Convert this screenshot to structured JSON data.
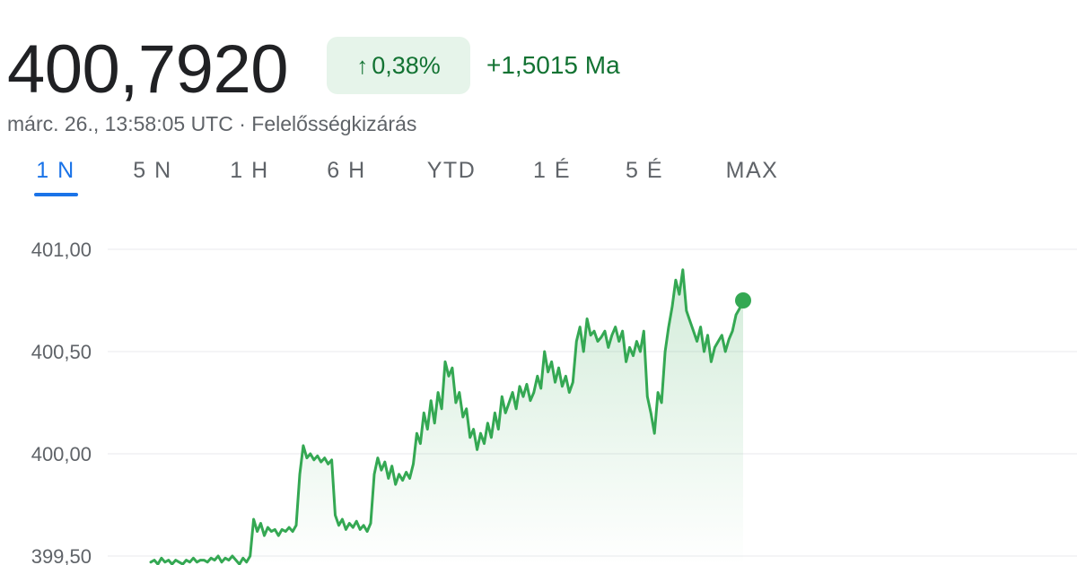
{
  "quote": {
    "price": "400,7920",
    "change_percent": "0,38%",
    "change_arrow": "↑",
    "change_absolute": "+1,5015 Ma",
    "timestamp": "márc. 26., 13:58:05 UTC",
    "separator": "·",
    "disclaimer": "Felelősségkizárás"
  },
  "tabs": [
    {
      "label": "1 N",
      "active": true
    },
    {
      "label": "5 N",
      "active": false
    },
    {
      "label": "1 H",
      "active": false
    },
    {
      "label": "6 H",
      "active": false
    },
    {
      "label": "YTD",
      "active": false
    },
    {
      "label": "1 É",
      "active": false
    },
    {
      "label": "5 É",
      "active": false
    },
    {
      "label": "MAX",
      "active": false
    }
  ],
  "colors": {
    "up": "#34a853",
    "up_text": "#137333",
    "accent": "#1a73e8",
    "grid": "#e8eaed"
  },
  "chart_data": {
    "type": "line",
    "y_ticks": [
      "401,00",
      "400,50",
      "400,00",
      "399,50"
    ],
    "y_tick_values": [
      401.0,
      400.5,
      400.0,
      399.5
    ],
    "ylim": [
      399.45,
      401.05
    ],
    "grid": true,
    "series": [
      {
        "values": [
          399.47,
          399.48,
          399.46,
          399.49,
          399.47,
          399.48,
          399.46,
          399.48,
          399.47,
          399.46,
          399.48,
          399.47,
          399.49,
          399.47,
          399.48,
          399.48,
          399.47,
          399.49,
          399.48,
          399.5,
          399.47,
          399.49,
          399.48,
          399.5,
          399.48,
          399.46,
          399.49,
          399.47,
          399.5,
          399.68,
          399.62,
          399.66,
          399.6,
          399.64,
          399.62,
          399.63,
          399.6,
          399.63,
          399.62,
          399.64,
          399.62,
          399.65,
          399.9,
          400.04,
          399.98,
          400.0,
          399.97,
          399.99,
          399.96,
          399.98,
          399.95,
          399.97,
          399.7,
          399.65,
          399.68,
          399.63,
          399.66,
          399.64,
          399.67,
          399.63,
          399.65,
          399.62,
          399.66,
          399.9,
          399.98,
          399.92,
          399.96,
          399.88,
          399.94,
          399.85,
          399.9,
          399.87,
          399.91,
          399.88,
          399.95,
          400.1,
          400.05,
          400.2,
          400.12,
          400.26,
          400.15,
          400.3,
          400.22,
          400.45,
          400.38,
          400.42,
          400.25,
          400.3,
          400.18,
          400.22,
          400.08,
          400.12,
          400.02,
          400.1,
          400.05,
          400.15,
          400.08,
          400.2,
          400.12,
          400.28,
          400.2,
          400.25,
          400.3,
          400.22,
          400.33,
          400.28,
          400.34,
          400.26,
          400.3,
          400.38,
          400.32,
          400.5,
          400.4,
          400.45,
          400.35,
          400.42,
          400.33,
          400.38,
          400.3,
          400.35,
          400.55,
          400.62,
          400.5,
          400.66,
          400.58,
          400.6,
          400.55,
          400.57,
          400.6,
          400.52,
          400.58,
          400.62,
          400.55,
          400.6,
          400.45,
          400.52,
          400.48,
          400.55,
          400.5,
          400.6,
          400.28,
          400.2,
          400.1,
          400.3,
          400.25,
          400.5,
          400.62,
          400.72,
          400.85,
          400.78,
          400.9,
          400.7,
          400.65,
          400.6,
          400.55,
          400.62,
          400.5,
          400.58,
          400.45,
          400.52,
          400.55,
          400.58,
          400.5,
          400.56,
          400.6,
          400.68,
          400.71,
          400.75
        ]
      }
    ]
  }
}
